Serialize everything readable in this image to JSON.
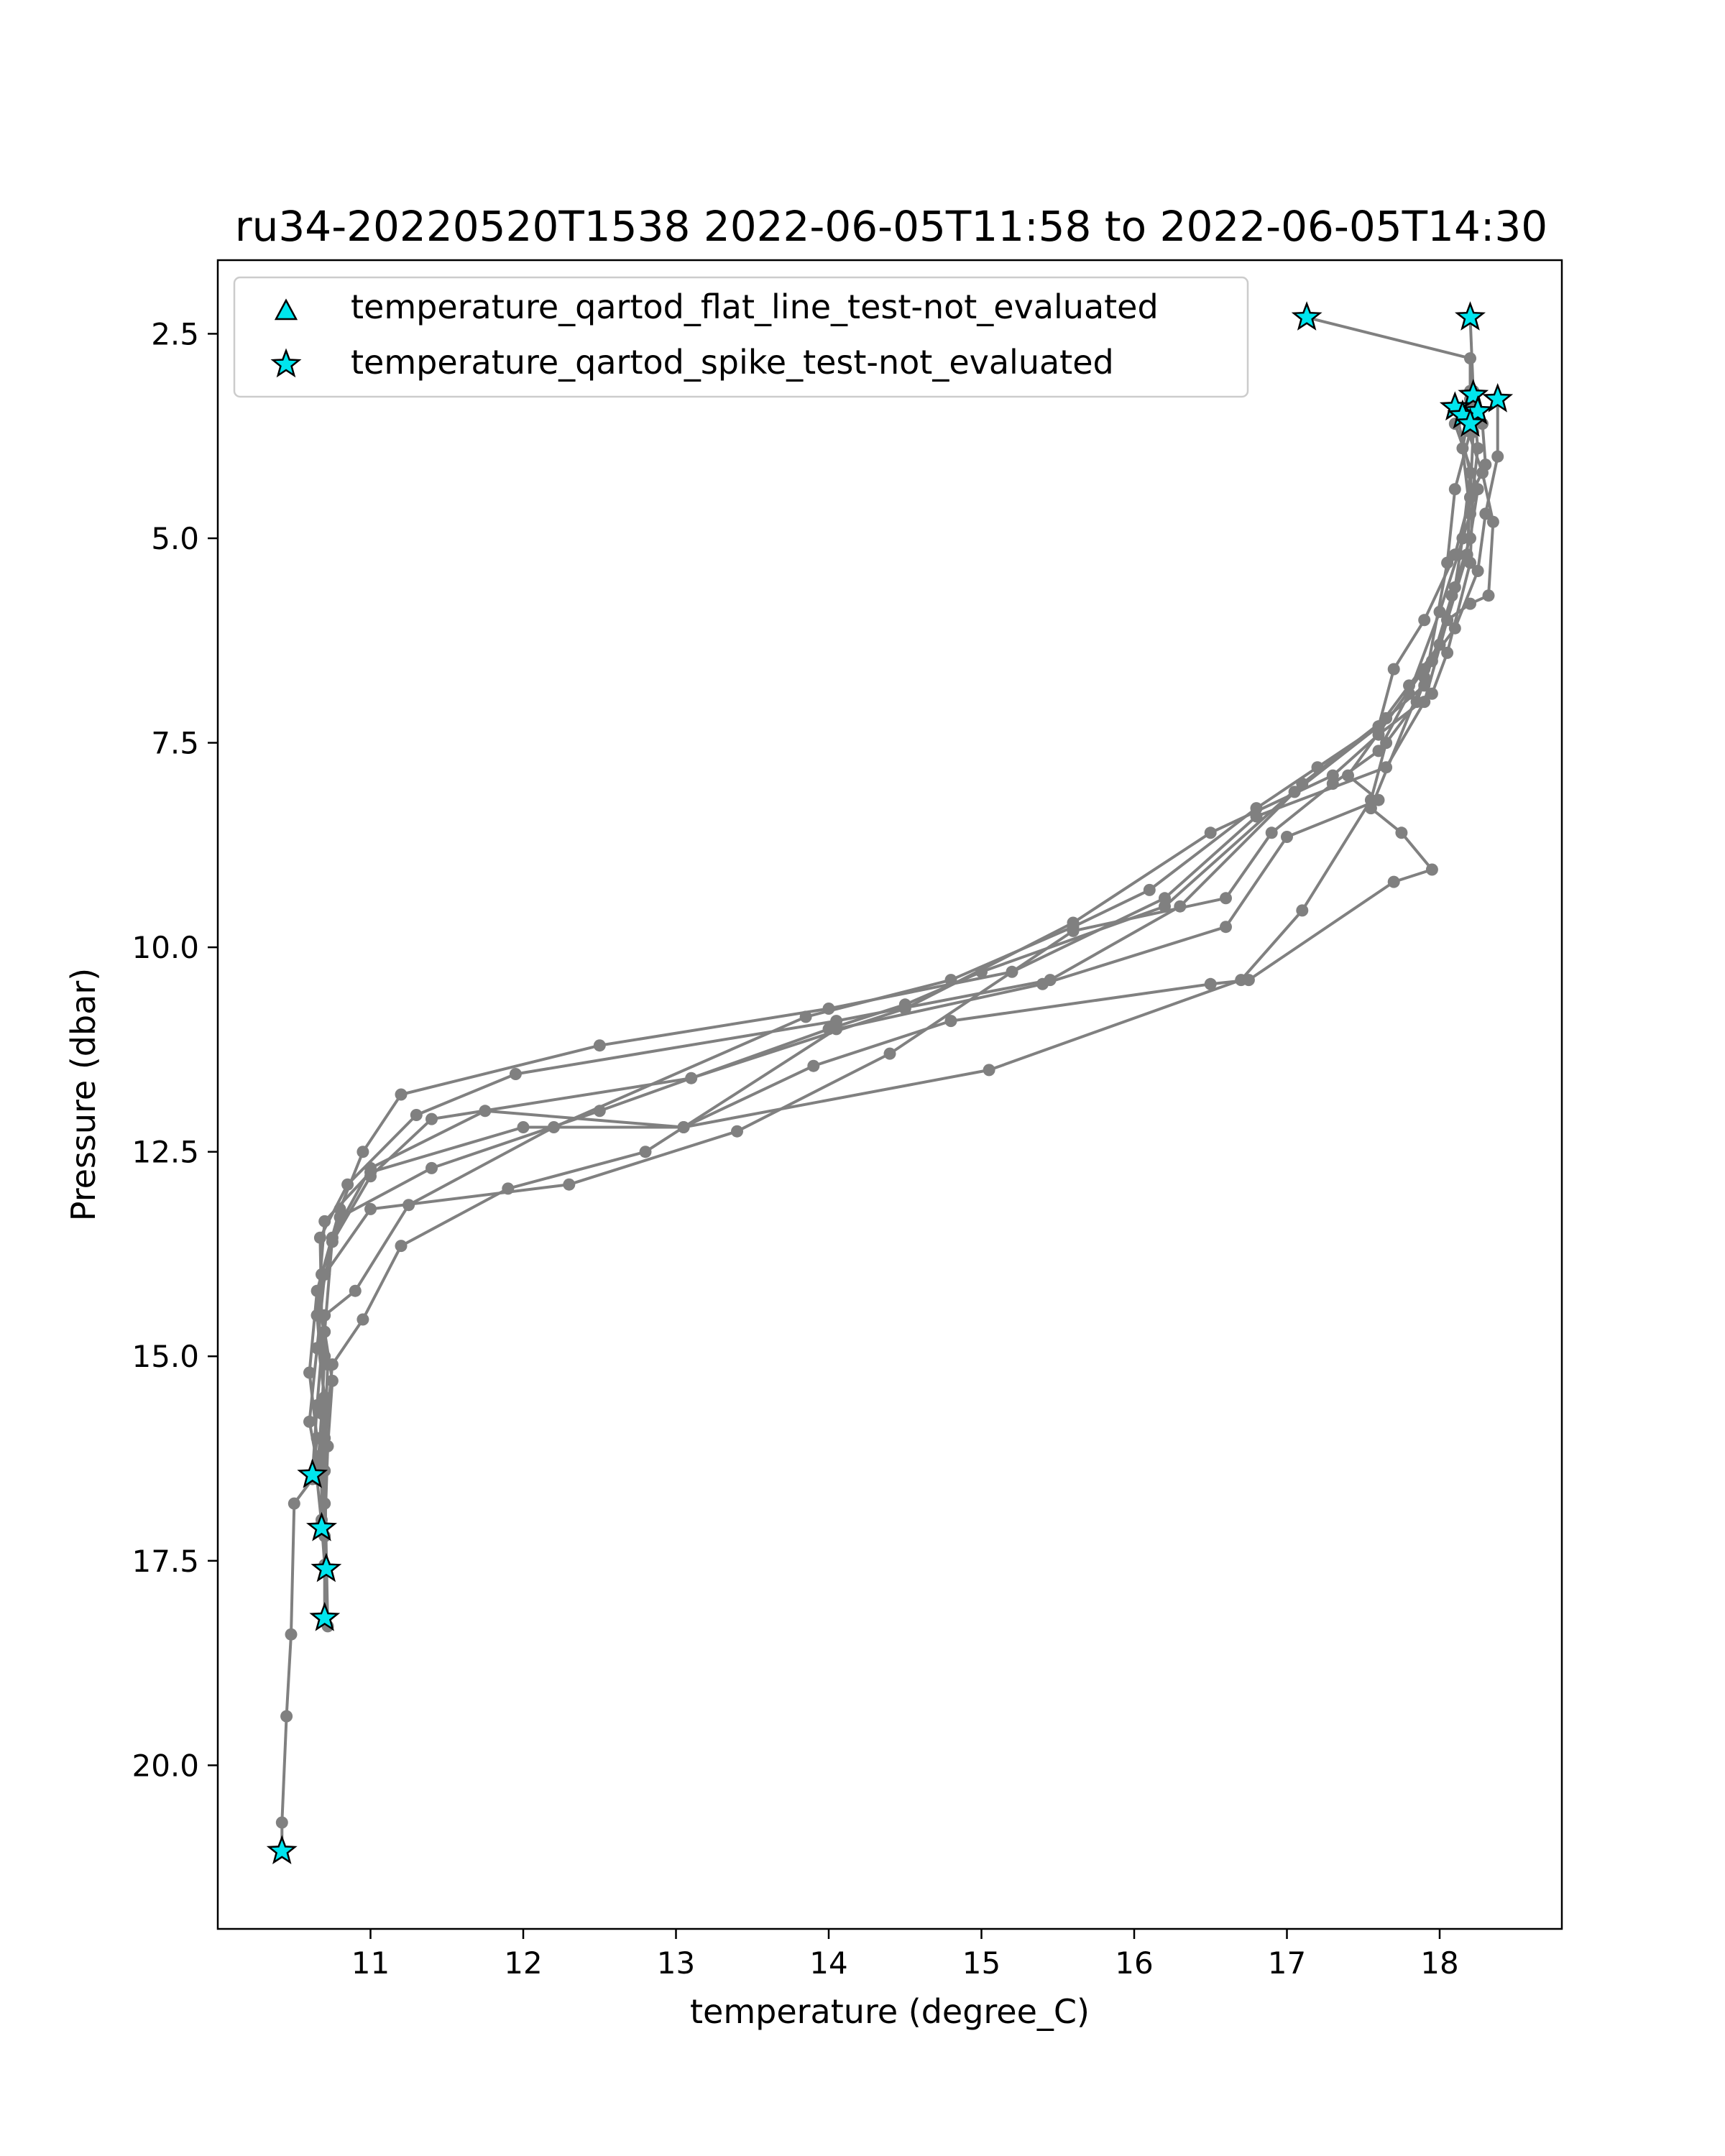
{
  "chart_data": {
    "type": "line",
    "title": "ru34-20220520T1538 2022-06-05T11:58 to 2022-06-05T14:30",
    "xlabel": "temperature (degree_C)",
    "ylabel": "Pressure (dbar)",
    "xlim": [
      10.0,
      18.8
    ],
    "ylim": [
      1.6,
      22.0
    ],
    "y_inverted": true,
    "grid": false,
    "legend_position": "top-left",
    "xticks": [
      {
        "value": 11,
        "label": "11"
      },
      {
        "value": 12,
        "label": "12"
      },
      {
        "value": 13,
        "label": "13"
      },
      {
        "value": 14,
        "label": "14"
      },
      {
        "value": 15,
        "label": "15"
      },
      {
        "value": 16,
        "label": "16"
      },
      {
        "value": 17,
        "label": "17"
      },
      {
        "value": 18,
        "label": "18"
      }
    ],
    "yticks": [
      {
        "value": 2.5,
        "label": "2.5"
      },
      {
        "value": 5.0,
        "label": "5.0"
      },
      {
        "value": 7.5,
        "label": "7.5"
      },
      {
        "value": 10.0,
        "label": "10.0"
      },
      {
        "value": 12.5,
        "label": "12.5"
      },
      {
        "value": 15.0,
        "label": "15.0"
      },
      {
        "value": 17.5,
        "label": "17.5"
      },
      {
        "value": 20.0,
        "label": "20.0"
      }
    ],
    "colors": {
      "profile": "#808080",
      "marker_fill": "#00e5ee",
      "marker_edge": "#000000"
    },
    "legend": [
      {
        "marker": "triangle",
        "label": "temperature_qartod_flat_line_test-not_evaluated"
      },
      {
        "marker": "star",
        "label": "temperature_qartod_spike_test-not_evaluated"
      }
    ],
    "profiles": [
      {
        "points": [
          [
            17.13,
            2.3
          ],
          [
            18.2,
            2.8
          ],
          [
            18.2,
            3.3
          ],
          [
            18.22,
            3.7
          ],
          [
            18.2,
            4.5
          ],
          [
            18.18,
            5.2
          ],
          [
            18.05,
            6.0
          ],
          [
            17.9,
            7.0
          ],
          [
            17.65,
            7.8
          ],
          [
            16.8,
            8.4
          ],
          [
            16.2,
            9.4
          ],
          [
            15.2,
            10.3
          ],
          [
            14.0,
            10.75
          ],
          [
            12.5,
            11.2
          ],
          [
            11.2,
            11.8
          ],
          [
            10.95,
            12.5
          ],
          [
            10.8,
            13.2
          ],
          [
            10.65,
            14.2
          ],
          [
            10.6,
            15.2
          ],
          [
            10.65,
            16.0
          ],
          [
            10.62,
            16.5
          ],
          [
            10.5,
            16.8
          ],
          [
            10.48,
            18.4
          ],
          [
            10.45,
            19.4
          ],
          [
            10.42,
            20.7
          ],
          [
            10.42,
            21.05
          ]
        ]
      },
      {
        "points": [
          [
            18.22,
            3.3
          ],
          [
            18.25,
            3.9
          ],
          [
            18.22,
            4.4
          ],
          [
            18.2,
            5.3
          ],
          [
            18.05,
            6.4
          ],
          [
            17.95,
            6.9
          ],
          [
            17.6,
            7.4
          ],
          [
            17.3,
            7.9
          ],
          [
            16.5,
            8.6
          ],
          [
            15.6,
            9.7
          ],
          [
            14.5,
            10.75
          ],
          [
            13.1,
            11.6
          ],
          [
            11.4,
            12.1
          ],
          [
            11.0,
            12.8
          ],
          [
            10.75,
            13.6
          ],
          [
            10.65,
            14.5
          ],
          [
            10.7,
            15.6
          ],
          [
            10.68,
            16.2
          ],
          [
            10.68,
            17.1
          ]
        ]
      },
      {
        "points": [
          [
            18.1,
            3.4
          ],
          [
            18.2,
            4.2
          ],
          [
            18.15,
            5.0
          ],
          [
            18.1,
            5.6
          ],
          [
            18.0,
            6.3
          ],
          [
            17.8,
            6.8
          ],
          [
            17.6,
            7.3
          ],
          [
            17.05,
            8.1
          ],
          [
            16.3,
            9.5
          ],
          [
            15.45,
            10.4
          ],
          [
            14.05,
            10.9
          ],
          [
            11.95,
            11.55
          ],
          [
            11.3,
            12.05
          ],
          [
            10.85,
            12.9
          ],
          [
            10.67,
            13.55
          ],
          [
            10.68,
            14.5
          ],
          [
            10.72,
            15.1
          ],
          [
            10.7,
            16.0
          ],
          [
            10.7,
            16.8
          ],
          [
            10.71,
            17.6
          ]
        ]
      },
      {
        "points": [
          [
            18.15,
            3.5
          ],
          [
            18.28,
            4.2
          ],
          [
            18.35,
            4.8
          ],
          [
            18.32,
            5.7
          ],
          [
            18.2,
            5.8
          ],
          [
            18.05,
            6.0
          ],
          [
            17.9,
            6.7
          ],
          [
            17.55,
            8.3
          ],
          [
            17.75,
            8.6
          ],
          [
            17.95,
            9.05
          ],
          [
            17.7,
            9.2
          ],
          [
            16.75,
            10.4
          ],
          [
            16.5,
            10.45
          ],
          [
            14.8,
            10.9
          ],
          [
            13.9,
            11.45
          ],
          [
            13.05,
            12.2
          ],
          [
            11.75,
            12.0
          ],
          [
            11.0,
            12.7
          ],
          [
            10.75,
            13.55
          ],
          [
            10.7,
            14.7
          ],
          [
            10.75,
            15.3
          ],
          [
            10.72,
            16.1
          ],
          [
            10.7,
            17.2
          ],
          [
            10.7,
            18.2
          ]
        ]
      },
      {
        "points": [
          [
            18.22,
            3.35
          ],
          [
            18.28,
            3.6
          ],
          [
            18.3,
            4.1
          ],
          [
            18.2,
            4.5
          ],
          [
            18.1,
            5.2
          ],
          [
            17.9,
            6.0
          ],
          [
            17.7,
            6.6
          ],
          [
            17.6,
            7.3
          ],
          [
            17.2,
            7.8
          ],
          [
            16.8,
            8.3
          ],
          [
            16.1,
            9.3
          ],
          [
            15.6,
            9.75
          ],
          [
            14.8,
            10.4
          ],
          [
            13.85,
            10.85
          ],
          [
            12.2,
            12.2
          ],
          [
            11.25,
            13.15
          ],
          [
            10.9,
            14.2
          ],
          [
            10.7,
            14.5
          ],
          [
            10.65,
            15.6
          ],
          [
            10.62,
            16.45
          ]
        ]
      },
      {
        "points": [
          [
            18.38,
            3.3
          ],
          [
            18.38,
            4.0
          ],
          [
            18.3,
            4.7
          ],
          [
            18.25,
            5.4
          ],
          [
            18.1,
            6.1
          ],
          [
            17.9,
            6.6
          ],
          [
            17.4,
            7.9
          ],
          [
            17.6,
            8.2
          ],
          [
            17.0,
            8.65
          ],
          [
            16.6,
            9.75
          ],
          [
            15.4,
            10.45
          ],
          [
            14.05,
            11.0
          ],
          [
            12.8,
            12.5
          ],
          [
            11.9,
            12.95
          ],
          [
            11.2,
            13.65
          ],
          [
            10.95,
            14.55
          ],
          [
            10.75,
            15.1
          ],
          [
            10.7,
            16.1
          ],
          [
            10.68,
            17.0
          ]
        ]
      },
      {
        "points": [
          [
            18.2,
            2.3
          ],
          [
            18.22,
            3.2
          ],
          [
            18.15,
            3.9
          ],
          [
            18.2,
            4.7
          ],
          [
            18.12,
            5.2
          ],
          [
            18.0,
            5.9
          ],
          [
            17.8,
            6.9
          ],
          [
            17.6,
            7.6
          ],
          [
            17.3,
            8.0
          ],
          [
            16.9,
            8.6
          ],
          [
            16.6,
            9.4
          ],
          [
            15.6,
            9.8
          ],
          [
            14.4,
            11.3
          ],
          [
            13.4,
            12.25
          ],
          [
            12.3,
            12.9
          ],
          [
            11.0,
            13.2
          ],
          [
            10.7,
            14.0
          ],
          [
            10.65,
            14.9
          ],
          [
            10.6,
            15.8
          ],
          [
            10.65,
            16.3
          ]
        ]
      },
      {
        "points": [
          [
            18.1,
            3.6
          ],
          [
            18.25,
            4.4
          ],
          [
            18.2,
            5.0
          ],
          [
            18.08,
            5.7
          ],
          [
            17.95,
            6.5
          ],
          [
            17.85,
            7.0
          ],
          [
            17.65,
            7.5
          ],
          [
            17.55,
            8.2
          ],
          [
            17.1,
            9.55
          ],
          [
            16.7,
            10.4
          ],
          [
            15.05,
            11.5
          ],
          [
            13.05,
            12.2
          ],
          [
            12.0,
            12.2
          ],
          [
            11.0,
            12.75
          ],
          [
            10.7,
            13.35
          ],
          [
            10.65,
            14.5
          ],
          [
            10.7,
            15.0
          ],
          [
            10.68,
            15.7
          ],
          [
            10.65,
            16.5
          ],
          [
            10.68,
            17.05
          ],
          [
            10.7,
            17.55
          ]
        ]
      },
      {
        "points": [
          [
            18.2,
            3.2
          ],
          [
            18.2,
            3.7
          ],
          [
            18.1,
            4.4
          ],
          [
            18.05,
            5.3
          ],
          [
            17.9,
            6.8
          ],
          [
            17.65,
            7.2
          ],
          [
            17.1,
            8.0
          ],
          [
            16.2,
            9.5
          ],
          [
            15.0,
            10.3
          ],
          [
            14.5,
            10.7
          ],
          [
            14.0,
            11.0
          ],
          [
            12.5,
            12.0
          ],
          [
            11.4,
            12.7
          ],
          [
            10.8,
            13.3
          ],
          [
            10.68,
            14.0
          ],
          [
            10.66,
            14.9
          ],
          [
            10.7,
            15.5
          ],
          [
            10.7,
            16.4
          ],
          [
            10.72,
            18.3
          ]
        ]
      }
    ],
    "spike_markers": [
      [
        17.13,
        2.3
      ],
      [
        18.2,
        2.3
      ],
      [
        18.22,
        3.25
      ],
      [
        18.38,
        3.3
      ],
      [
        18.1,
        3.4
      ],
      [
        18.15,
        3.5
      ],
      [
        18.25,
        3.45
      ],
      [
        18.2,
        3.6
      ],
      [
        10.62,
        16.45
      ],
      [
        10.68,
        17.1
      ],
      [
        10.71,
        17.6
      ],
      [
        10.7,
        18.2
      ],
      [
        10.42,
        21.05
      ]
    ]
  }
}
